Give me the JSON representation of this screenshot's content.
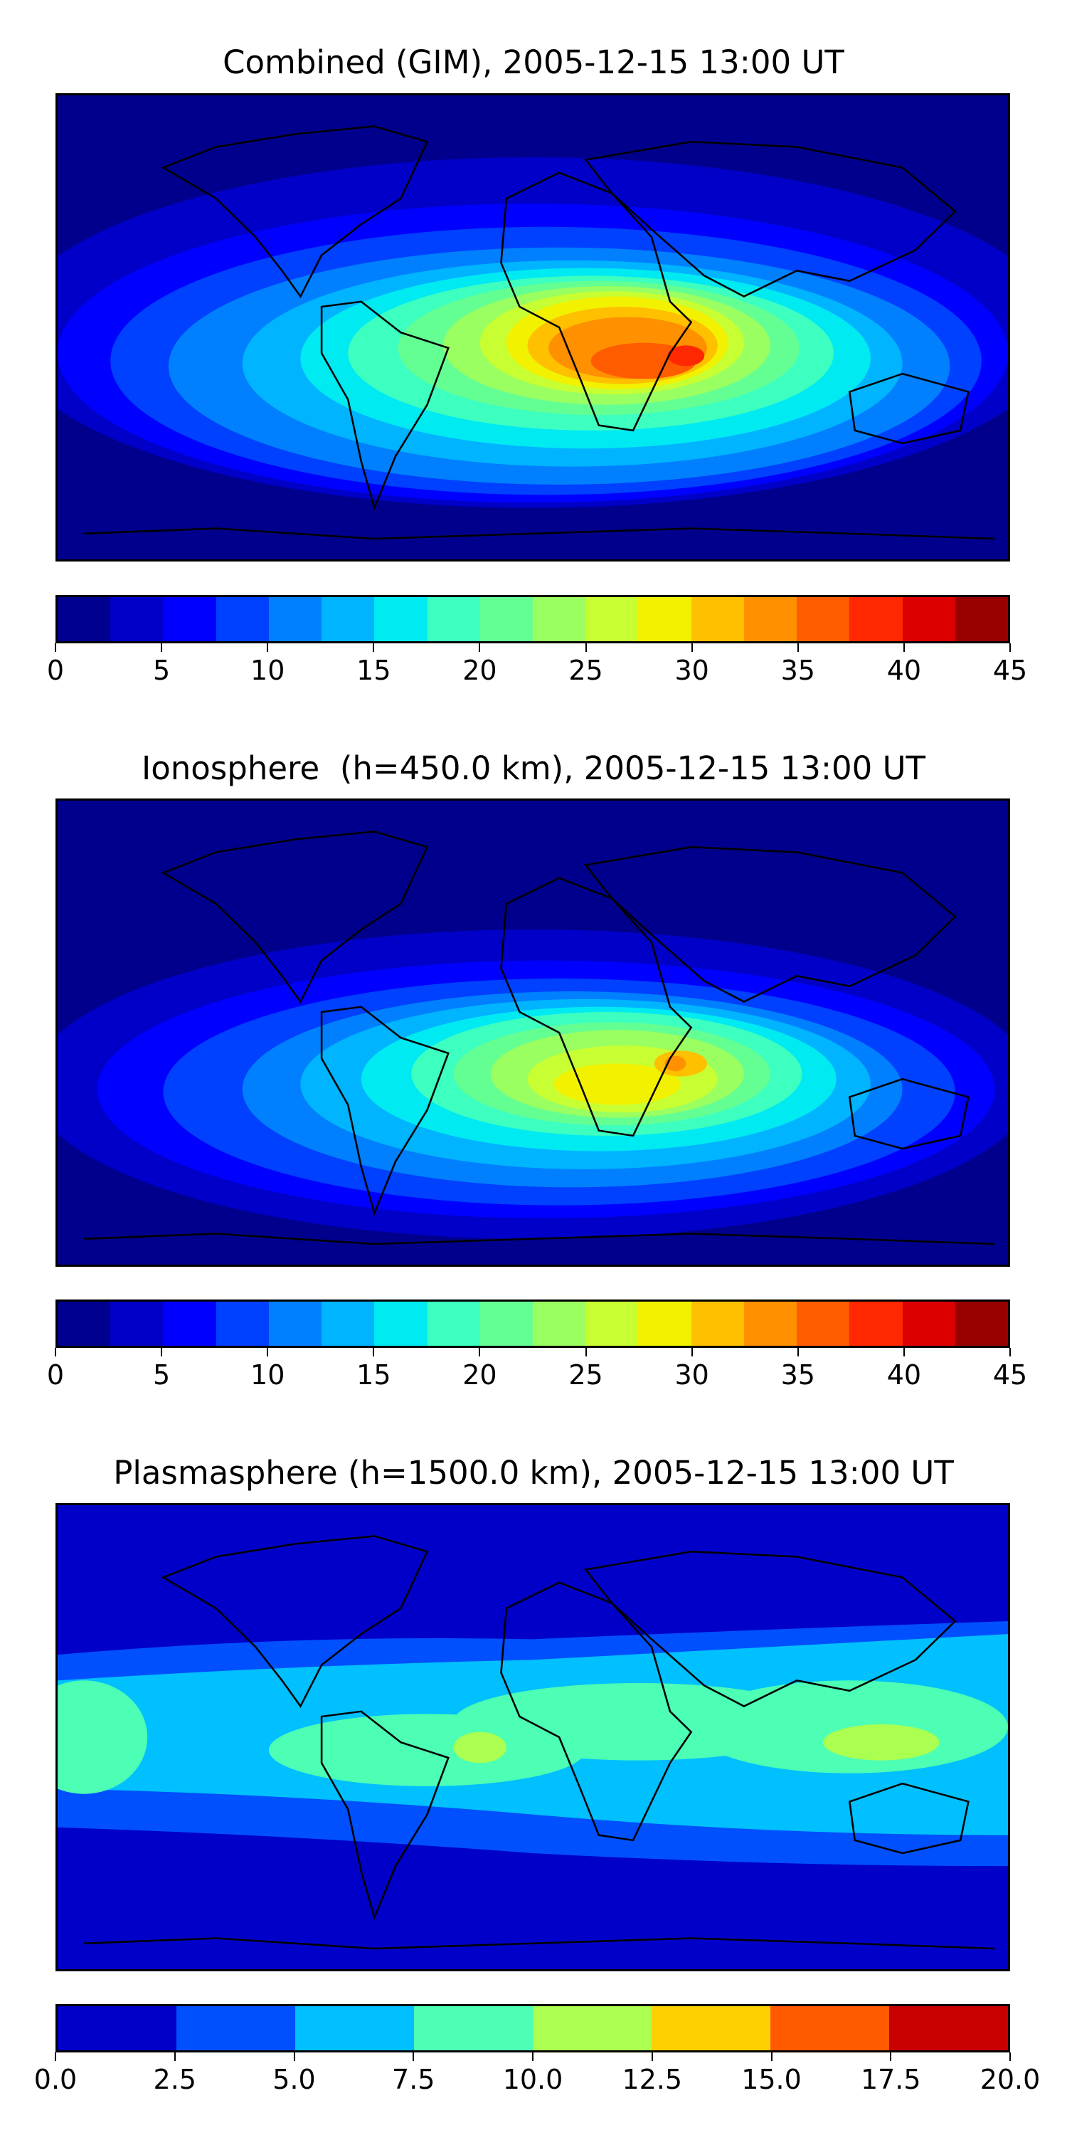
{
  "panels": [
    {
      "title": "Combined (GIM), 2005-12-15 13:00 UT",
      "colorbar": {
        "ticks": [
          "0",
          "5",
          "10",
          "15",
          "20",
          "25",
          "30",
          "35",
          "40",
          "45"
        ],
        "colors": [
          "#00008f",
          "#0000c8",
          "#0000ff",
          "#0040ff",
          "#0080ff",
          "#00b4ff",
          "#00eaf2",
          "#3cffc0",
          "#64ff92",
          "#9aff60",
          "#c8ff32",
          "#f2f200",
          "#ffc000",
          "#ff9000",
          "#ff5c00",
          "#ff2800",
          "#dd0000",
          "#980000"
        ]
      },
      "map": {
        "field": "combined"
      }
    },
    {
      "title": "Ionosphere  (h=450.0 km), 2005-12-15 13:00 UT",
      "colorbar": {
        "ticks": [
          "0",
          "5",
          "10",
          "15",
          "20",
          "25",
          "30",
          "35",
          "40",
          "45"
        ],
        "colors": [
          "#00008f",
          "#0000c8",
          "#0000ff",
          "#0040ff",
          "#0080ff",
          "#00b4ff",
          "#00eaf2",
          "#3cffc0",
          "#64ff92",
          "#9aff60",
          "#c8ff32",
          "#f2f200",
          "#ffc000",
          "#ff9000",
          "#ff5c00",
          "#ff2800",
          "#dd0000",
          "#980000"
        ]
      },
      "map": {
        "field": "ionosphere"
      }
    },
    {
      "title": "Plasmasphere (h=1500.0 km), 2005-12-15 13:00 UT",
      "colorbar": {
        "ticks": [
          "0.0",
          "2.5",
          "5.0",
          "7.5",
          "10.0",
          "12.5",
          "15.0",
          "17.5",
          "20.0"
        ],
        "colors": [
          "#0000c8",
          "#0050ff",
          "#00c0ff",
          "#4cffb4",
          "#aaff50",
          "#ffd000",
          "#ff5a00",
          "#c80000"
        ]
      },
      "map": {
        "field": "plasmasphere"
      }
    }
  ]
}
